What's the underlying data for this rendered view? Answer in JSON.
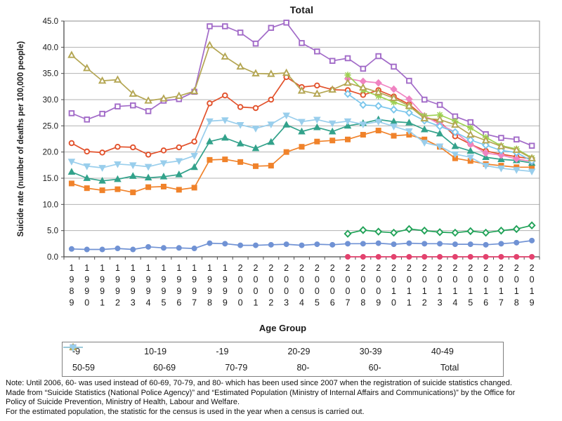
{
  "header": {
    "title": "Total"
  },
  "axes": {
    "ylabel": "Suicide rate (number of deaths per 100,000 people)",
    "legend_title": "Age Group"
  },
  "notes": [
    "Note: Until 2006, 60- was used instead of 60-69, 70-79, and 80- which has been used since 2007 when the registration of suicide statistics changed.",
    "Made from “Suicide Statistics (National Police Agency)” and “Estimated Population (Ministry of Internal Affairs and Communications)” by the Office for",
    "Policy of Suicide Prevention, Ministry of Health, Labour and Welfare.",
    "For the estimated population, the statistic for the census is used in the year when a census is carried out."
  ],
  "chart_data": {
    "type": "line",
    "title": "Total",
    "ylabel": "Suicide rate (number of deaths per 100,000 people)",
    "legend_title": "Age Group",
    "ylim": [
      0,
      45
    ],
    "ytick_step": 5,
    "grid": true,
    "legend_position": "bottom",
    "x": [
      "1989",
      "1990",
      "1991",
      "1992",
      "1993",
      "1994",
      "1995",
      "1996",
      "1997",
      "1998",
      "1999",
      "2000",
      "2001",
      "2002",
      "2003",
      "2004",
      "2005",
      "2006",
      "2007",
      "2008",
      "2009",
      "2010",
      "2011",
      "2012",
      "2013",
      "2014",
      "2015",
      "2016",
      "2017",
      "2018",
      "2019"
    ],
    "series": [
      {
        "name": "-9",
        "color": "#e3426e",
        "marker": "circle",
        "filled": true,
        "values": [
          null,
          null,
          null,
          null,
          null,
          null,
          null,
          null,
          null,
          null,
          null,
          null,
          null,
          null,
          null,
          null,
          null,
          null,
          0.0,
          0.0,
          0.0,
          0.0,
          0.0,
          0.0,
          0.0,
          0.0,
          0.0,
          0.0,
          0.0,
          0.0,
          0.0
        ]
      },
      {
        "name": "10-19",
        "color": "#21a258",
        "marker": "diamond",
        "filled": false,
        "values": [
          null,
          null,
          null,
          null,
          null,
          null,
          null,
          null,
          null,
          null,
          null,
          null,
          null,
          null,
          null,
          null,
          null,
          null,
          4.4,
          5.1,
          4.8,
          4.6,
          5.3,
          5.0,
          4.7,
          4.6,
          4.9,
          4.6,
          5.0,
          5.3,
          6.0
        ]
      },
      {
        "name": "-19",
        "color": "#7092d4",
        "marker": "circle",
        "filled": true,
        "values": [
          1.5,
          1.4,
          1.4,
          1.6,
          1.4,
          1.9,
          1.7,
          1.7,
          1.6,
          2.6,
          2.5,
          2.2,
          2.2,
          2.3,
          2.4,
          2.2,
          2.4,
          2.3,
          2.5,
          2.5,
          2.6,
          2.4,
          2.6,
          2.5,
          2.5,
          2.4,
          2.4,
          2.3,
          2.5,
          2.7,
          3.1
        ]
      },
      {
        "name": "20-29",
        "color": "#f0822a",
        "marker": "square",
        "filled": true,
        "values": [
          14.0,
          13.1,
          12.7,
          12.9,
          12.3,
          13.3,
          13.4,
          12.8,
          13.2,
          18.5,
          18.6,
          18.1,
          17.3,
          17.4,
          20.0,
          21.0,
          22.0,
          22.2,
          22.4,
          23.3,
          24.1,
          23.1,
          23.3,
          22.4,
          21.0,
          18.8,
          18.3,
          17.7,
          17.4,
          17.1,
          17.1
        ]
      },
      {
        "name": "30-39",
        "color": "#33a28b",
        "marker": "triangle",
        "filled": true,
        "values": [
          16.2,
          15.0,
          14.5,
          14.8,
          15.4,
          15.1,
          15.3,
          15.7,
          17.1,
          22.0,
          22.7,
          21.6,
          20.7,
          21.9,
          25.2,
          23.9,
          24.7,
          23.9,
          25.0,
          25.5,
          26.2,
          25.8,
          25.6,
          24.3,
          23.5,
          21.1,
          20.2,
          19.0,
          18.6,
          18.4,
          17.9
        ]
      },
      {
        "name": "40-49",
        "color": "#e2512b",
        "marker": "circle",
        "filled": false,
        "values": [
          21.7,
          20.1,
          19.9,
          21.0,
          20.9,
          19.5,
          20.3,
          20.9,
          22.0,
          29.3,
          30.8,
          28.6,
          28.4,
          30.0,
          34.3,
          32.4,
          32.7,
          31.9,
          31.8,
          30.9,
          31.8,
          30.6,
          29.1,
          26.7,
          25.8,
          23.0,
          21.5,
          20.2,
          19.6,
          19.1,
          18.7
        ]
      },
      {
        "name": "50-59",
        "color": "#a26bc8",
        "marker": "square",
        "filled": false,
        "values": [
          27.4,
          26.2,
          27.3,
          28.7,
          28.9,
          27.8,
          29.8,
          30.1,
          31.5,
          44.0,
          44.0,
          42.8,
          40.7,
          43.7,
          44.7,
          40.8,
          39.2,
          37.4,
          37.9,
          35.9,
          38.3,
          36.3,
          33.6,
          30.0,
          29.0,
          26.8,
          25.7,
          23.4,
          22.7,
          22.4,
          21.2
        ]
      },
      {
        "name": "60-69",
        "color": "#f084c2",
        "marker": "diamond",
        "filled": true,
        "values": [
          null,
          null,
          null,
          null,
          null,
          null,
          null,
          null,
          null,
          null,
          null,
          null,
          null,
          null,
          null,
          null,
          null,
          null,
          34.0,
          33.5,
          33.2,
          32.0,
          30.1,
          26.9,
          25.3,
          23.8,
          21.5,
          19.8,
          19.4,
          18.7,
          18.2
        ]
      },
      {
        "name": "70-79",
        "color": "#7cc7ec",
        "marker": "diamond",
        "filled": false,
        "values": [
          null,
          null,
          null,
          null,
          null,
          null,
          null,
          null,
          null,
          null,
          null,
          null,
          null,
          null,
          null,
          null,
          null,
          null,
          31.1,
          29.0,
          28.8,
          28.1,
          27.5,
          26.0,
          24.9,
          23.8,
          22.3,
          21.3,
          20.3,
          19.9,
          18.3
        ]
      },
      {
        "name": "80-",
        "color": "#9ed152",
        "marker": "star",
        "filled": true,
        "values": [
          null,
          null,
          null,
          null,
          null,
          null,
          null,
          null,
          null,
          null,
          null,
          null,
          null,
          null,
          null,
          null,
          null,
          null,
          34.7,
          31.8,
          30.7,
          29.5,
          28.6,
          26.9,
          27.1,
          25.9,
          24.6,
          22.8,
          21.2,
          20.6,
          18.9
        ]
      },
      {
        "name": "60-",
        "color": "#b4a653",
        "marker": "triangle",
        "filled": false,
        "values": [
          38.5,
          36.0,
          33.6,
          33.8,
          31.1,
          29.8,
          30.2,
          30.7,
          31.6,
          40.4,
          38.2,
          36.3,
          35.0,
          34.9,
          35.1,
          31.7,
          31.1,
          31.9,
          33.2,
          32.3,
          31.4,
          30.3,
          28.8,
          26.4,
          26.2,
          25.2,
          23.3,
          22.2,
          21.1,
          20.4,
          18.8
        ]
      },
      {
        "name": "Total",
        "color": "#99ceec",
        "marker": "tridown",
        "filled": true,
        "values": [
          18.2,
          17.3,
          17.0,
          17.7,
          17.5,
          17.2,
          17.9,
          18.3,
          19.3,
          25.9,
          26.1,
          25.2,
          24.5,
          25.3,
          27.0,
          25.8,
          26.2,
          25.5,
          25.9,
          25.3,
          25.8,
          24.9,
          24.0,
          21.8,
          21.1,
          19.6,
          19.0,
          17.4,
          16.9,
          16.6,
          16.3
        ]
      }
    ]
  }
}
